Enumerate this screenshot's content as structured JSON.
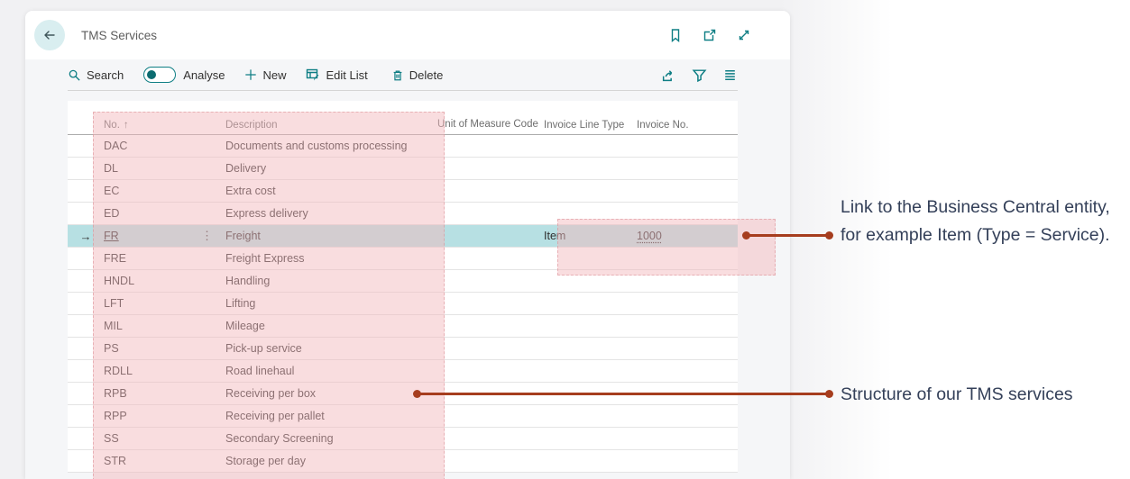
{
  "page": {
    "title": "TMS Services"
  },
  "header_icons": {
    "bookmark": "bookmark-icon",
    "open_window": "open-in-new-window-icon",
    "expand": "expand-icon"
  },
  "toolbar": {
    "search_label": "Search",
    "analyse_label": "Analyse",
    "new_label": "New",
    "edit_list_label": "Edit List",
    "delete_label": "Delete"
  },
  "table": {
    "sort_arrow": "↑",
    "selected_row_arrow": "→",
    "row_menu_glyph": "⋮",
    "columns": {
      "no": "No.",
      "description": "Description",
      "uom": "Unit of Measure Code",
      "invoice_line_type": "Invoice Line Type",
      "invoice_no": "Invoice No."
    },
    "rows": [
      {
        "no": "DAC",
        "description": "Documents and customs processing",
        "invoice_line_type": "",
        "invoice_no": "",
        "selected": false
      },
      {
        "no": "DL",
        "description": "Delivery",
        "invoice_line_type": "",
        "invoice_no": "",
        "selected": false
      },
      {
        "no": "EC",
        "description": "Extra cost",
        "invoice_line_type": "",
        "invoice_no": "",
        "selected": false
      },
      {
        "no": "ED",
        "description": "Express delivery",
        "invoice_line_type": "",
        "invoice_no": "",
        "selected": false
      },
      {
        "no": "FR",
        "description": "Freight",
        "invoice_line_type": "Item",
        "invoice_no": "1000",
        "selected": true
      },
      {
        "no": "FRE",
        "description": "Freight Express",
        "invoice_line_type": "",
        "invoice_no": "",
        "selected": false
      },
      {
        "no": "HNDL",
        "description": "Handling",
        "invoice_line_type": "",
        "invoice_no": "",
        "selected": false
      },
      {
        "no": "LFT",
        "description": "Lifting",
        "invoice_line_type": "",
        "invoice_no": "",
        "selected": false
      },
      {
        "no": "MIL",
        "description": "Mileage",
        "invoice_line_type": "",
        "invoice_no": "",
        "selected": false
      },
      {
        "no": "PS",
        "description": "Pick-up service",
        "invoice_line_type": "",
        "invoice_no": "",
        "selected": false
      },
      {
        "no": "RDLL",
        "description": "Road linehaul",
        "invoice_line_type": "",
        "invoice_no": "",
        "selected": false
      },
      {
        "no": "RPB",
        "description": "Receiving per box",
        "invoice_line_type": "",
        "invoice_no": "",
        "selected": false
      },
      {
        "no": "RPP",
        "description": "Receiving per pallet",
        "invoice_line_type": "",
        "invoice_no": "",
        "selected": false
      },
      {
        "no": "SS",
        "description": "Secondary Screening",
        "invoice_line_type": "",
        "invoice_no": "",
        "selected": false
      },
      {
        "no": "STR",
        "description": "Storage per day",
        "invoice_line_type": "",
        "invoice_no": "",
        "selected": false
      }
    ]
  },
  "annotations": {
    "entity_link": "Link to the Business Central entity, for example Item (Type = Service).",
    "structure": "Structure of our TMS services"
  },
  "colors": {
    "accent_teal": "#0e7e84",
    "selected_row": "#b7e0e3",
    "highlight_pink": "rgba(242,184,189,0.48)",
    "annotation_line": "#a63d1e",
    "annotation_text": "#344059"
  }
}
